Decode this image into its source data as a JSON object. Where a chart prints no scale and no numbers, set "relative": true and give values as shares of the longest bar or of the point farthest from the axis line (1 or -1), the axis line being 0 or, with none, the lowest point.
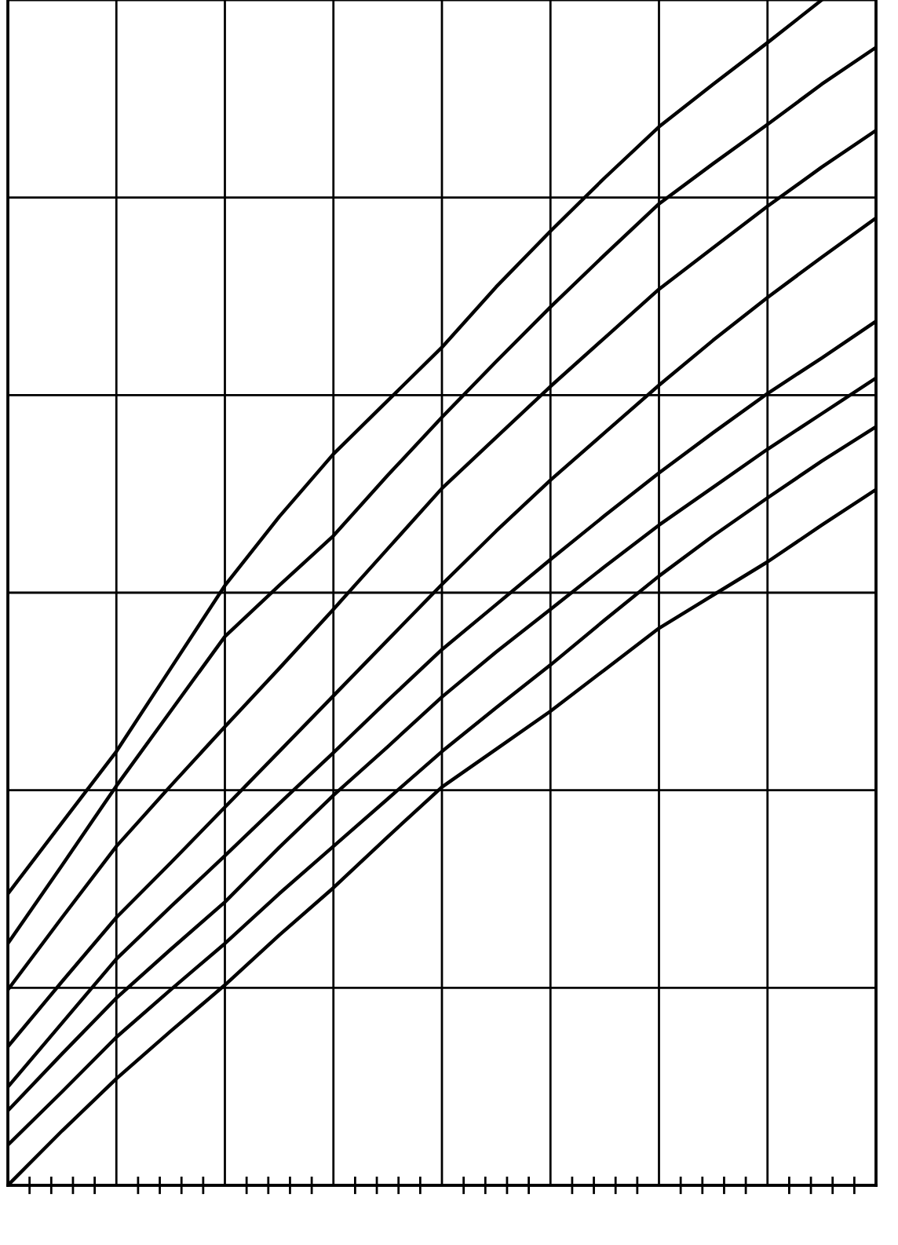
{
  "chart_data": {
    "type": "line",
    "relative": true,
    "grid": true,
    "tick_labels": false,
    "marker": "none",
    "line_style": "solid",
    "categories": [
      null,
      null,
      null,
      null,
      null,
      null,
      null,
      null,
      null,
      null,
      null,
      null,
      null,
      null,
      null,
      null,
      null
    ],
    "series": [
      {
        "color": "#000000",
        "values": [
          0.246,
          0.306,
          0.366,
          0.436,
          0.506,
          0.564,
          0.617,
          0.662,
          0.707,
          0.758,
          0.805,
          0.85,
          0.893,
          0.929,
          0.964,
          1.0,
          null
        ]
      },
      {
        "color": "#000000",
        "values": [
          0.204,
          0.27,
          0.337,
          0.4,
          0.463,
          0.506,
          0.548,
          0.599,
          0.648,
          0.695,
          0.741,
          0.785,
          0.828,
          0.862,
          0.895,
          0.929,
          0.96
        ]
      },
      {
        "color": "#000000",
        "values": [
          0.165,
          0.226,
          0.286,
          0.337,
          0.387,
          0.436,
          0.486,
          0.537,
          0.588,
          0.631,
          0.674,
          0.715,
          0.756,
          0.791,
          0.826,
          0.859,
          0.89
        ]
      },
      {
        "color": "#000000",
        "values": [
          0.117,
          0.172,
          0.226,
          0.272,
          0.319,
          0.366,
          0.413,
          0.46,
          0.507,
          0.552,
          0.595,
          0.635,
          0.675,
          0.713,
          0.749,
          0.783,
          0.816
        ]
      },
      {
        "color": "#000000",
        "values": [
          0.083,
          0.137,
          0.191,
          0.235,
          0.278,
          0.322,
          0.365,
          0.409,
          0.452,
          0.49,
          0.528,
          0.565,
          0.601,
          0.635,
          0.668,
          0.698,
          0.729
        ]
      },
      {
        "color": "#000000",
        "values": [
          0.063,
          0.111,
          0.158,
          0.199,
          0.239,
          0.285,
          0.329,
          0.37,
          0.412,
          0.45,
          0.486,
          0.522,
          0.557,
          0.589,
          0.621,
          0.651,
          0.681
        ]
      },
      {
        "color": "#000000",
        "values": [
          0.034,
          0.079,
          0.125,
          0.165,
          0.204,
          0.246,
          0.286,
          0.326,
          0.366,
          0.403,
          0.439,
          0.477,
          0.514,
          0.548,
          0.58,
          0.611,
          0.64
        ]
      },
      {
        "color": "#000000",
        "values": [
          0.0,
          0.046,
          0.09,
          0.13,
          0.169,
          0.211,
          0.251,
          0.294,
          0.336,
          0.368,
          0.4,
          0.435,
          0.47,
          0.498,
          0.526,
          0.557,
          0.587
        ]
      }
    ]
  }
}
